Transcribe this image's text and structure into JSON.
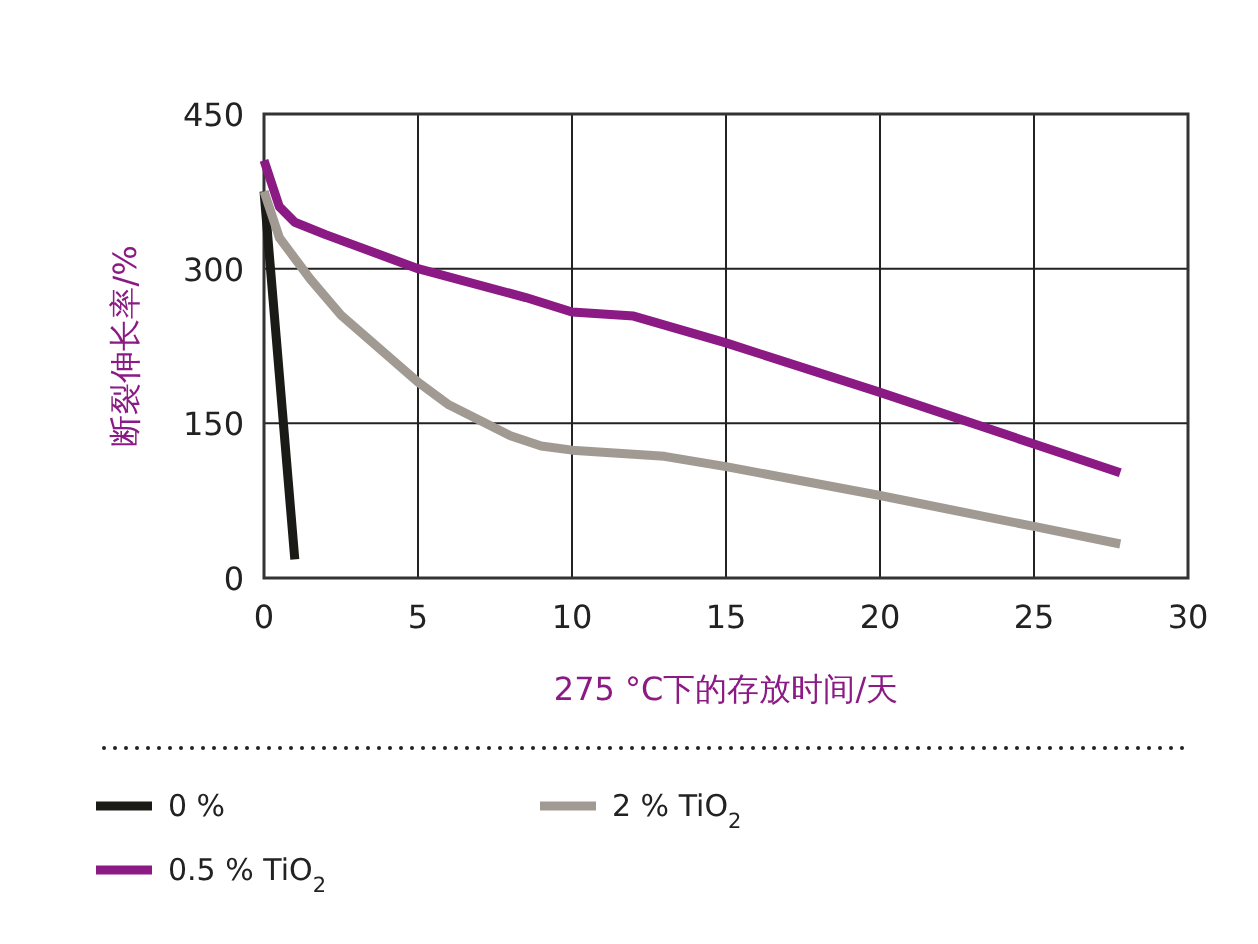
{
  "chart_data": {
    "type": "line",
    "xlabel": "275 °C下的存放时间/天",
    "ylabel": "断裂伸长率/%",
    "xlim": [
      0,
      30
    ],
    "ylim": [
      0,
      450
    ],
    "xticks": [
      0,
      5,
      10,
      15,
      20,
      25,
      30
    ],
    "yticks": [
      0,
      150,
      300,
      450
    ],
    "grid": true,
    "legend": "bottom",
    "line_style": "solid",
    "marker": "none",
    "series": [
      {
        "name": "0 %",
        "color": "#1a1a16",
        "x": [
          0,
          1
        ],
        "values": [
          375,
          18
        ]
      },
      {
        "name": "2 % TiO$_{2}$",
        "color": "#a09a93",
        "x": [
          0,
          0.5,
          1.5,
          2.5,
          5,
          6,
          8,
          9,
          10,
          13,
          15,
          20,
          25,
          27.8
        ],
        "values": [
          375,
          330,
          290,
          255,
          190,
          168,
          138,
          128,
          124,
          118,
          108,
          80,
          50,
          33
        ]
      },
      {
        "name": "0.5 % TiO$_{2}$",
        "color": "#8b1a84",
        "x": [
          0,
          0.5,
          1,
          2,
          5,
          8.5,
          10,
          12,
          15,
          20,
          25,
          27.8
        ],
        "values": [
          405,
          360,
          345,
          333,
          300,
          272,
          258,
          254,
          228,
          180,
          130,
          102
        ]
      }
    ]
  }
}
